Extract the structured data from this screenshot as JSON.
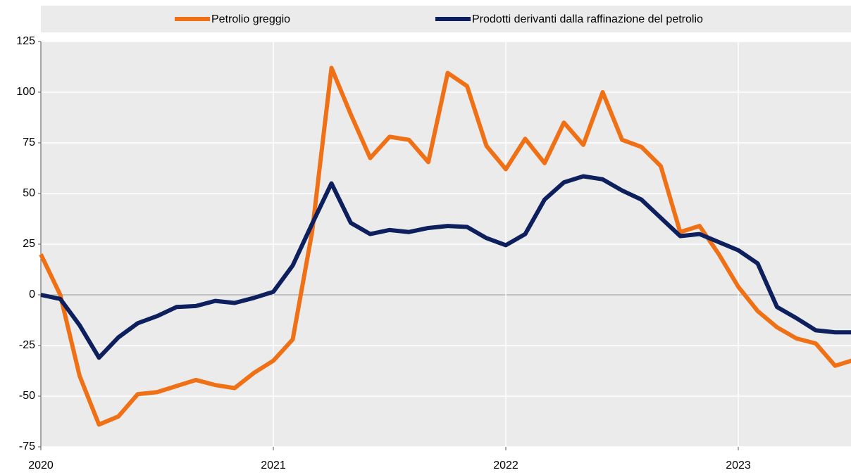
{
  "chart_data": {
    "type": "line",
    "categories": [
      "2020",
      null,
      null,
      null,
      null,
      null,
      null,
      null,
      null,
      null,
      null,
      null,
      "2021",
      null,
      null,
      null,
      null,
      null,
      null,
      null,
      null,
      null,
      null,
      null,
      "2022",
      null,
      null,
      null,
      null,
      null,
      null,
      null,
      null,
      null,
      null,
      null,
      "2023",
      null,
      null,
      null,
      null,
      null,
      null
    ],
    "series": [
      {
        "name": "Petrolio greggio",
        "color": "#f07016",
        "values": [
          20,
          0,
          -40,
          -64,
          -60,
          -49,
          -48,
          -45,
          -42,
          -44.5,
          -46,
          -38.5,
          -32.5,
          -22,
          31,
          112,
          89,
          67.5,
          78,
          76.5,
          65.5,
          109.5,
          103,
          73.5,
          62,
          77,
          65,
          85,
          74,
          100,
          76.5,
          73,
          63.5,
          31,
          34,
          20,
          4,
          -8,
          -16,
          -21.5,
          -24,
          -35,
          -32
        ]
      },
      {
        "name": "Prodotti derivanti dalla raffinazione del petrolio",
        "color": "#0d1f5c",
        "values": [
          0,
          -2,
          -15,
          -31,
          -21,
          -14,
          -10.5,
          -6,
          -5.5,
          -3,
          -4,
          -1.5,
          1.5,
          14.5,
          35,
          55,
          35.5,
          30,
          32,
          31,
          33,
          34,
          33.5,
          28,
          24.5,
          30,
          47,
          55.5,
          58.5,
          57,
          51.5,
          47,
          38,
          29,
          30,
          26,
          22,
          15.5,
          -6,
          -11.5,
          -17.5,
          -18.5,
          -18.5
        ]
      }
    ],
    "ylim": [
      -75,
      125
    ],
    "yticks": [
      -75,
      -50,
      -25,
      0,
      25,
      50,
      75,
      100,
      125
    ],
    "grid": true
  }
}
